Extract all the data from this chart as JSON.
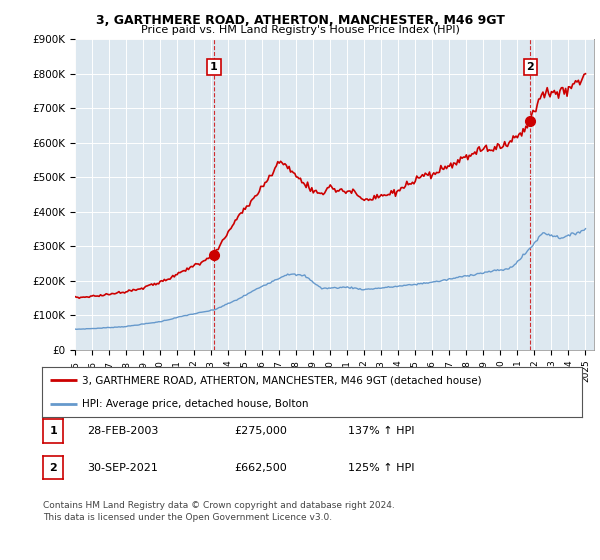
{
  "title1": "3, GARTHMERE ROAD, ATHERTON, MANCHESTER, M46 9GT",
  "title2": "Price paid vs. HM Land Registry's House Price Index (HPI)",
  "legend_label1": "3, GARTHMERE ROAD, ATHERTON, MANCHESTER, M46 9GT (detached house)",
  "legend_label2": "HPI: Average price, detached house, Bolton",
  "sale1_label": "1",
  "sale1_date": "28-FEB-2003",
  "sale1_price": "£275,000",
  "sale1_hpi": "137% ↑ HPI",
  "sale2_label": "2",
  "sale2_date": "30-SEP-2021",
  "sale2_price": "£662,500",
  "sale2_hpi": "125% ↑ HPI",
  "footnote": "Contains HM Land Registry data © Crown copyright and database right 2024.\nThis data is licensed under the Open Government Licence v3.0.",
  "line_color_red": "#cc0000",
  "line_color_blue": "#6699cc",
  "plot_bg_color": "#dde8f0",
  "fig_bg_color": "#ffffff",
  "grid_color": "#ffffff",
  "vline_color": "#cc0000",
  "label_box_color": "#cc0000",
  "ylim": [
    0,
    900000
  ],
  "yticks": [
    0,
    100000,
    200000,
    300000,
    400000,
    500000,
    600000,
    700000,
    800000,
    900000
  ],
  "ytick_labels": [
    "£0",
    "£100K",
    "£200K",
    "£300K",
    "£400K",
    "£500K",
    "£600K",
    "£700K",
    "£800K",
    "£900K"
  ],
  "sale1_x": 2003.167,
  "sale1_y": 275000,
  "sale2_x": 2021.75,
  "sale2_y": 662500,
  "xlim_start": 1995,
  "xlim_end": 2025.5
}
